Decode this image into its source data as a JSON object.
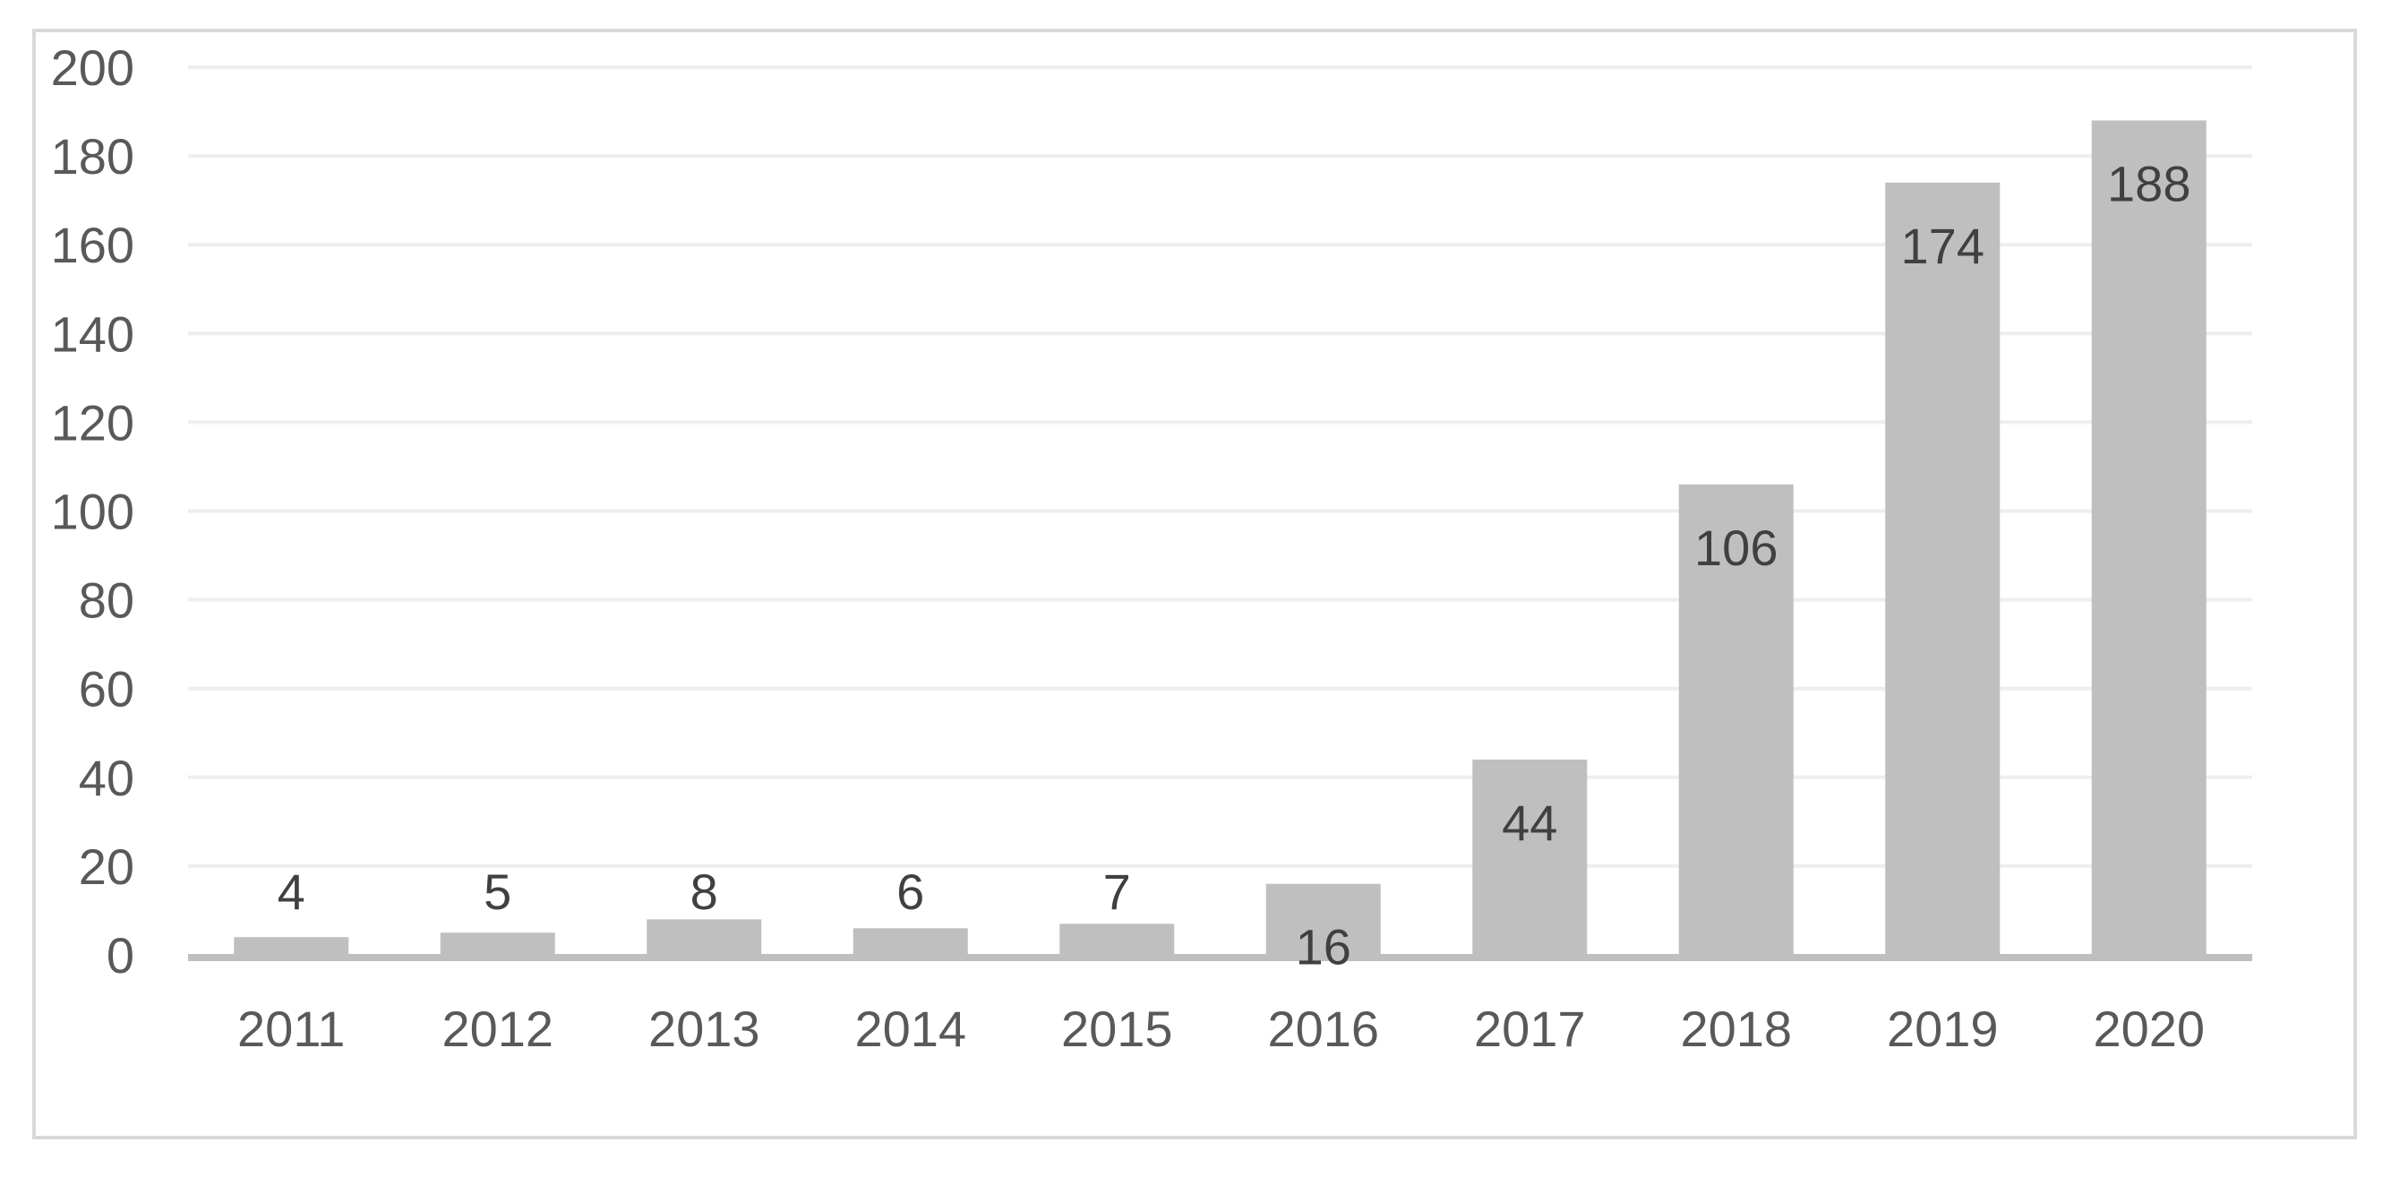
{
  "chart_data": {
    "type": "bar",
    "categories": [
      "2011",
      "2012",
      "2013",
      "2014",
      "2015",
      "2016",
      "2017",
      "2018",
      "2019",
      "2020"
    ],
    "values": [
      4,
      5,
      8,
      6,
      7,
      16,
      44,
      106,
      174,
      188
    ],
    "data_labels": [
      "4",
      "5",
      "8",
      "6",
      "7",
      "16",
      "44",
      "106",
      "174",
      "188"
    ],
    "y_ticks": [
      "0",
      "20",
      "40",
      "60",
      "80",
      "100",
      "120",
      "140",
      "160",
      "180",
      "200"
    ],
    "title": "",
    "xlabel": "",
    "ylabel": "",
    "ylim": [
      0,
      200
    ],
    "grid": true,
    "legend": "none",
    "colors": {
      "bar": "#bfbfbf",
      "gridline": "#eeeeee",
      "axis": "#bfbfbf",
      "frame": "#d9d9d9"
    }
  }
}
